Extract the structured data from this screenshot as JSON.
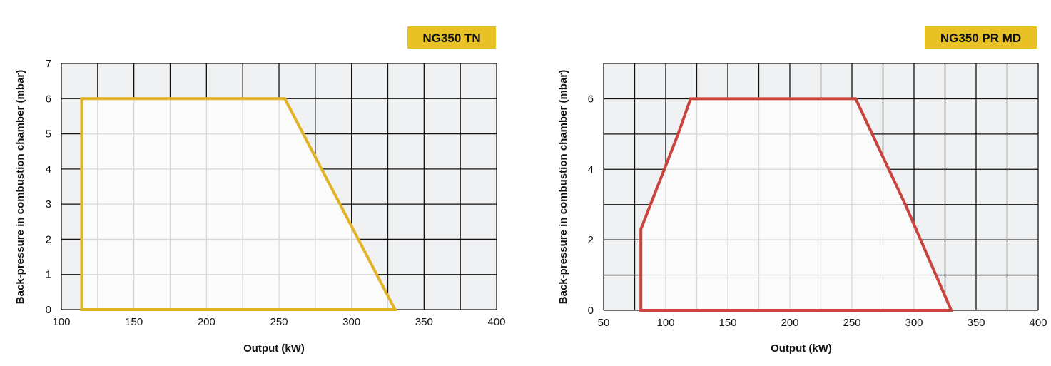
{
  "chart_data": [
    {
      "type": "area",
      "title": "NG350 TN",
      "xlabel": "Output (kW)",
      "ylabel": "Back-pressure in combustion chamber (mbar)",
      "xlim": [
        100,
        400
      ],
      "ylim": [
        0,
        7
      ],
      "xticks": [
        100,
        150,
        200,
        250,
        300,
        350,
        400
      ],
      "yticks": [
        0,
        1,
        2,
        3,
        4,
        5,
        6,
        7
      ],
      "x_minor_step": 25,
      "y_minor_step": 1,
      "grid": true,
      "series": [
        {
          "color": "#e2b327",
          "points": [
            [
              114,
              0
            ],
            [
              114,
              6
            ],
            [
              254,
              6
            ],
            [
              330,
              0
            ]
          ]
        }
      ],
      "colors": {
        "badge": "#e8c125",
        "plot_bg": "#f0f1f2",
        "fill": "#fafafa"
      }
    },
    {
      "type": "area",
      "title": "NG350 PR MD",
      "xlabel": "Output (kW)",
      "ylabel": "Back-pressure in combustion chamber (mbar)",
      "xlim": [
        50,
        400
      ],
      "ylim": [
        0,
        7
      ],
      "xticks": [
        50,
        100,
        150,
        200,
        250,
        300,
        350,
        400
      ],
      "yticks": [
        0,
        2,
        4,
        6
      ],
      "x_minor_step": 25,
      "y_minor_step": 1,
      "grid": true,
      "series": [
        {
          "color": "#c9443c",
          "points": [
            [
              80,
              0
            ],
            [
              80,
              2.3
            ],
            [
              110,
              5
            ],
            [
              120,
              6
            ],
            [
              253,
              6
            ],
            [
              293,
              3
            ],
            [
              330,
              0
            ]
          ]
        }
      ],
      "colors": {
        "badge": "#e8c125",
        "plot_bg": "#f0f1f2",
        "fill": "#fafafa"
      }
    }
  ]
}
